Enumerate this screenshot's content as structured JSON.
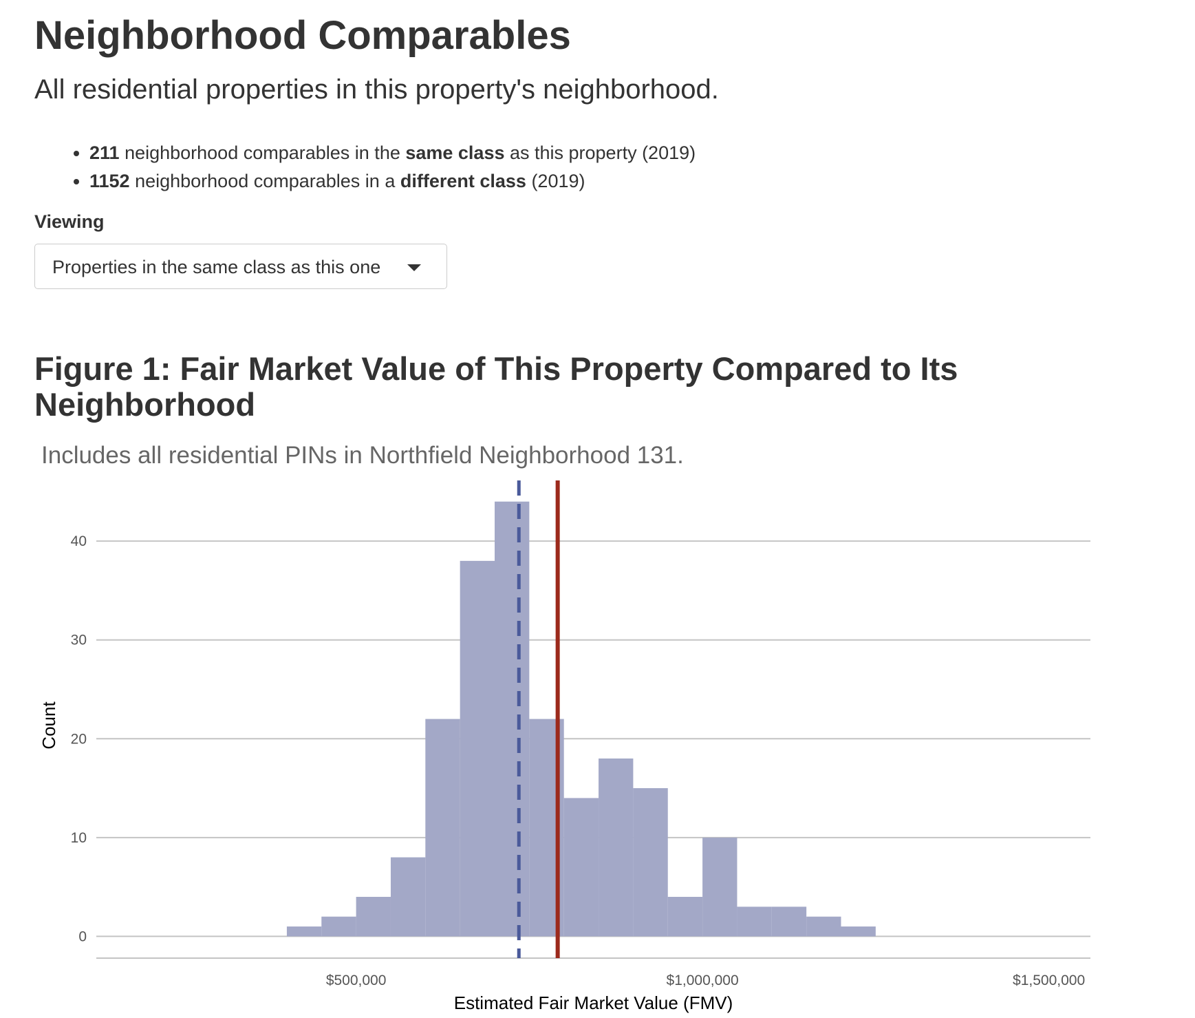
{
  "header": {
    "title": "Neighborhood Comparables",
    "lead": "All residential properties in this property's neighborhood."
  },
  "stats": [
    {
      "count": "211",
      "text_a": " neighborhood comparables in the ",
      "emph": "same class",
      "text_b": " as this property (2019)"
    },
    {
      "count": "1152",
      "text_a": " neighborhood comparables in a ",
      "emph": "different class",
      "text_b": " (2019)"
    }
  ],
  "viewing": {
    "label": "Viewing",
    "selected": "Properties in the same class as this one"
  },
  "figure": {
    "title": "Figure 1: Fair Market Value of This Property Compared to Its Neighborhood",
    "subtitle": "Includes all residential PINs in Northfield Neighborhood 131."
  },
  "chart_data": {
    "type": "histogram",
    "xlabel": "Estimated Fair Market Value (FMV)",
    "ylabel": "Count",
    "xlim": [
      125000,
      1560000
    ],
    "ylim": [
      -2.2,
      46
    ],
    "bin_width": 50000,
    "bins": [
      {
        "x0": 400000,
        "x1": 450000,
        "count": 1
      },
      {
        "x0": 450000,
        "x1": 500000,
        "count": 2
      },
      {
        "x0": 500000,
        "x1": 550000,
        "count": 4
      },
      {
        "x0": 550000,
        "x1": 600000,
        "count": 8
      },
      {
        "x0": 600000,
        "x1": 650000,
        "count": 22
      },
      {
        "x0": 650000,
        "x1": 700000,
        "count": 38
      },
      {
        "x0": 700000,
        "x1": 750000,
        "count": 44
      },
      {
        "x0": 750000,
        "x1": 800000,
        "count": 22
      },
      {
        "x0": 800000,
        "x1": 850000,
        "count": 14
      },
      {
        "x0": 850000,
        "x1": 900000,
        "count": 18
      },
      {
        "x0": 900000,
        "x1": 950000,
        "count": 15
      },
      {
        "x0": 950000,
        "x1": 1000000,
        "count": 4
      },
      {
        "x0": 1000000,
        "x1": 1050000,
        "count": 10
      },
      {
        "x0": 1050000,
        "x1": 1100000,
        "count": 3
      },
      {
        "x0": 1100000,
        "x1": 1150000,
        "count": 3
      },
      {
        "x0": 1150000,
        "x1": 1200000,
        "count": 2
      },
      {
        "x0": 1200000,
        "x1": 1250000,
        "count": 1
      }
    ],
    "x_ticks": [
      {
        "value": 500000,
        "label": "$500,000"
      },
      {
        "value": 1000000,
        "label": "$1,000,000"
      },
      {
        "value": 1500000,
        "label": "$1,500,000"
      }
    ],
    "y_ticks": [
      {
        "value": 0,
        "label": "0"
      },
      {
        "value": 10,
        "label": "10"
      },
      {
        "value": 20,
        "label": "20"
      },
      {
        "value": 30,
        "label": "30"
      },
      {
        "value": 40,
        "label": "40"
      }
    ],
    "reference_lines": [
      {
        "id": "neighborhood-median-line",
        "x": 735000,
        "style": "dashed",
        "color": "#4a5a9a"
      },
      {
        "id": "this-property-line",
        "x": 791000,
        "style": "solid",
        "color": "#9c2a1c"
      }
    ],
    "bar_color": "#a3a8c7",
    "grid": true
  }
}
